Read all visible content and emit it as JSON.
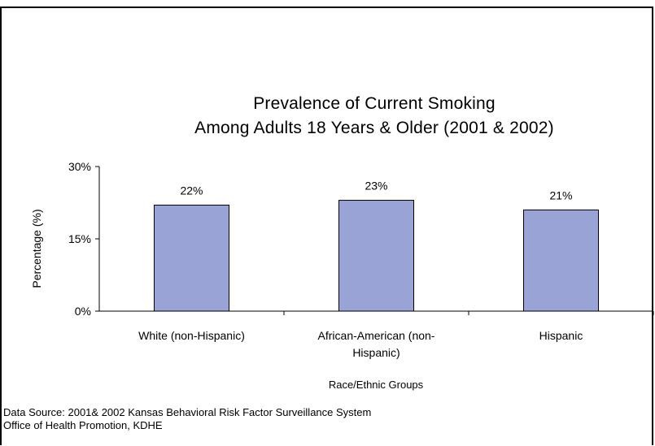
{
  "chart_data": {
    "type": "bar",
    "title_line1": "Prevalence of Current Smoking",
    "title_line2": "Among Adults 18 Years & Older (2001 & 2002)",
    "categories": [
      [
        "White (non-Hispanic)"
      ],
      [
        "African-American (non-",
        "Hispanic)"
      ],
      [
        "Hispanic"
      ]
    ],
    "values": [
      22,
      23,
      21
    ],
    "data_labels": [
      "22%",
      "23%",
      "21%"
    ],
    "ylim": [
      0,
      30
    ],
    "yticks": [
      {
        "value": 0,
        "label": "0%"
      },
      {
        "value": 15,
        "label": "15%"
      },
      {
        "value": 30,
        "label": "30%"
      }
    ],
    "ylabel": "Percentage (%)",
    "xlabel": "Race/Ethnic Groups",
    "grid": false,
    "colors": {
      "bar_fill": "#9aa3d6",
      "bar_stroke": "#000000"
    }
  },
  "source": {
    "line1": "Data Source: 2001& 2002 Kansas Behavioral Risk Factor Surveillance System",
    "line2": "Office of Health Promotion, KDHE"
  }
}
